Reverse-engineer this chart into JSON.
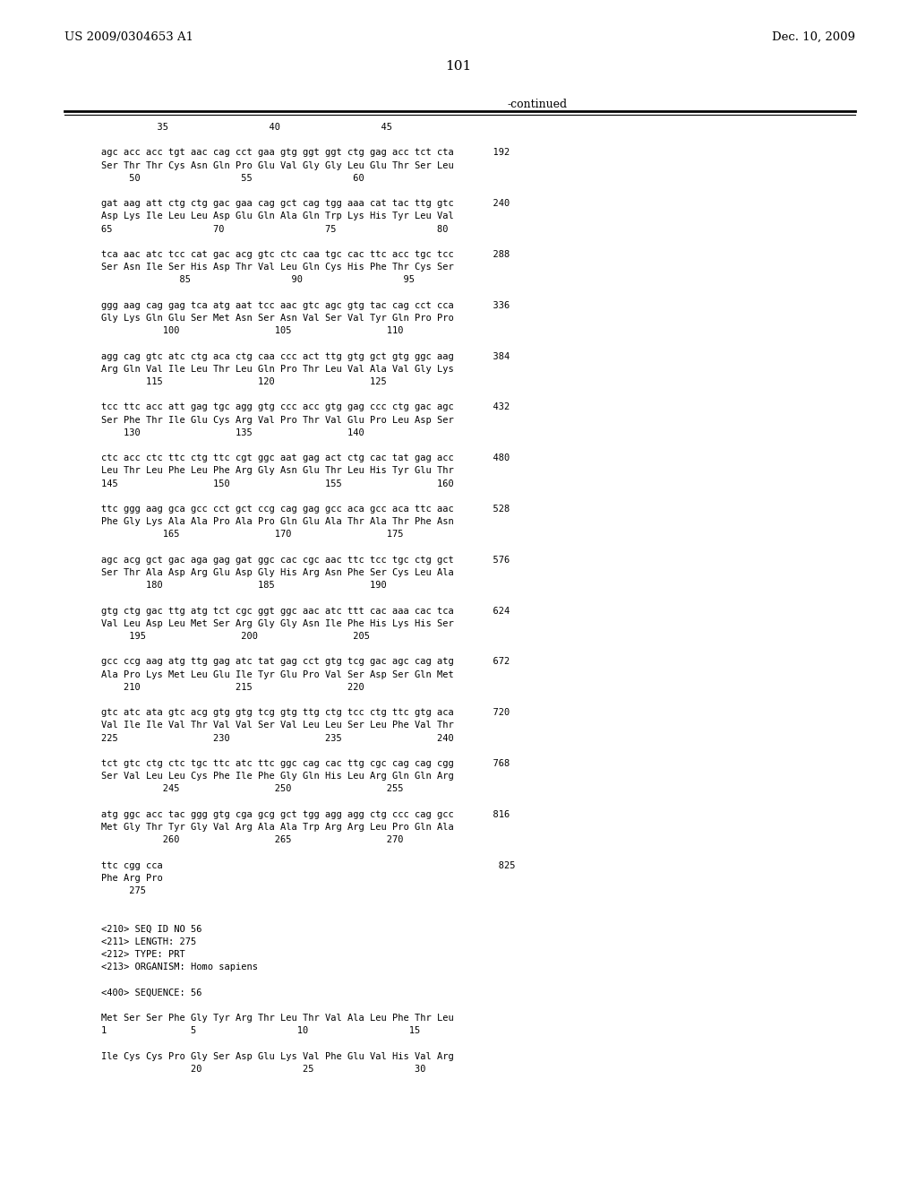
{
  "header_left": "US 2009/0304653 A1",
  "header_right": "Dec. 10, 2009",
  "page_number": "101",
  "continued_label": "-continued",
  "background_color": "#ffffff",
  "text_color": "#000000",
  "content": [
    "          35                  40                  45",
    "",
    "agc acc acc tgt aac cag cct gaa gtg ggt ggt ctg gag acc tct cta       192",
    "Ser Thr Thr Cys Asn Gln Pro Glu Val Gly Gly Leu Glu Thr Ser Leu",
    "     50                  55                  60",
    "",
    "gat aag att ctg ctg gac gaa cag gct cag tgg aaa cat tac ttg gtc       240",
    "Asp Lys Ile Leu Leu Asp Glu Gln Ala Gln Trp Lys His Tyr Leu Val",
    "65                  70                  75                  80",
    "",
    "tca aac atc tcc cat gac acg gtc ctc caa tgc cac ttc acc tgc tcc       288",
    "Ser Asn Ile Ser His Asp Thr Val Leu Gln Cys His Phe Thr Cys Ser",
    "              85                  90                  95",
    "",
    "ggg aag cag gag tca atg aat tcc aac gtc agc gtg tac cag cct cca       336",
    "Gly Lys Gln Glu Ser Met Asn Ser Asn Val Ser Val Tyr Gln Pro Pro",
    "           100                 105                 110",
    "",
    "agg cag gtc atc ctg aca ctg caa ccc act ttg gtg gct gtg ggc aag       384",
    "Arg Gln Val Ile Leu Thr Leu Gln Pro Thr Leu Val Ala Val Gly Lys",
    "        115                 120                 125",
    "",
    "tcc ttc acc att gag tgc agg gtg ccc acc gtg gag ccc ctg gac agc       432",
    "Ser Phe Thr Ile Glu Cys Arg Val Pro Thr Val Glu Pro Leu Asp Ser",
    "    130                 135                 140",
    "",
    "ctc acc ctc ttc ctg ttc cgt ggc aat gag act ctg cac tat gag acc       480",
    "Leu Thr Leu Phe Leu Phe Arg Gly Asn Glu Thr Leu His Tyr Glu Thr",
    "145                 150                 155                 160",
    "",
    "ttc ggg aag gca gcc cct gct ccg cag gag gcc aca gcc aca ttc aac       528",
    "Phe Gly Lys Ala Ala Pro Ala Pro Gln Glu Ala Thr Ala Thr Phe Asn",
    "           165                 170                 175",
    "",
    "agc acg gct gac aga gag gat ggc cac cgc aac ttc tcc tgc ctg gct       576",
    "Ser Thr Ala Asp Arg Glu Asp Gly His Arg Asn Phe Ser Cys Leu Ala",
    "        180                 185                 190",
    "",
    "gtg ctg gac ttg atg tct cgc ggt ggc aac atc ttt cac aaa cac tca       624",
    "Val Leu Asp Leu Met Ser Arg Gly Gly Asn Ile Phe His Lys His Ser",
    "     195                 200                 205",
    "",
    "gcc ccg aag atg ttg gag atc tat gag cct gtg tcg gac agc cag atg       672",
    "Ala Pro Lys Met Leu Glu Ile Tyr Glu Pro Val Ser Asp Ser Gln Met",
    "    210                 215                 220",
    "",
    "gtc atc ata gtc acg gtg gtg tcg gtg ttg ctg tcc ctg ttc gtg aca       720",
    "Val Ile Ile Val Thr Val Val Ser Val Leu Leu Ser Leu Phe Val Thr",
    "225                 230                 235                 240",
    "",
    "tct gtc ctg ctc tgc ttc atc ttc ggc cag cac ttg cgc cag cag cgg       768",
    "Ser Val Leu Leu Cys Phe Ile Phe Gly Gln His Leu Arg Gln Gln Arg",
    "           245                 250                 255",
    "",
    "atg ggc acc tac ggg gtg cga gcg gct tgg agg agg ctg ccc cag gcc       816",
    "Met Gly Thr Tyr Gly Val Arg Ala Ala Trp Arg Arg Leu Pro Gln Ala",
    "           260                 265                 270",
    "",
    "ttc cgg cca                                                            825",
    "Phe Arg Pro",
    "     275",
    "",
    "",
    "<210> SEQ ID NO 56",
    "<211> LENGTH: 275",
    "<212> TYPE: PRT",
    "<213> ORGANISM: Homo sapiens",
    "",
    "<400> SEQUENCE: 56",
    "",
    "Met Ser Ser Phe Gly Tyr Arg Thr Leu Thr Val Ala Leu Phe Thr Leu",
    "1               5                  10                  15",
    "",
    "Ile Cys Cys Pro Gly Ser Asp Glu Lys Val Phe Glu Val His Val Arg",
    "                20                  25                  30"
  ]
}
